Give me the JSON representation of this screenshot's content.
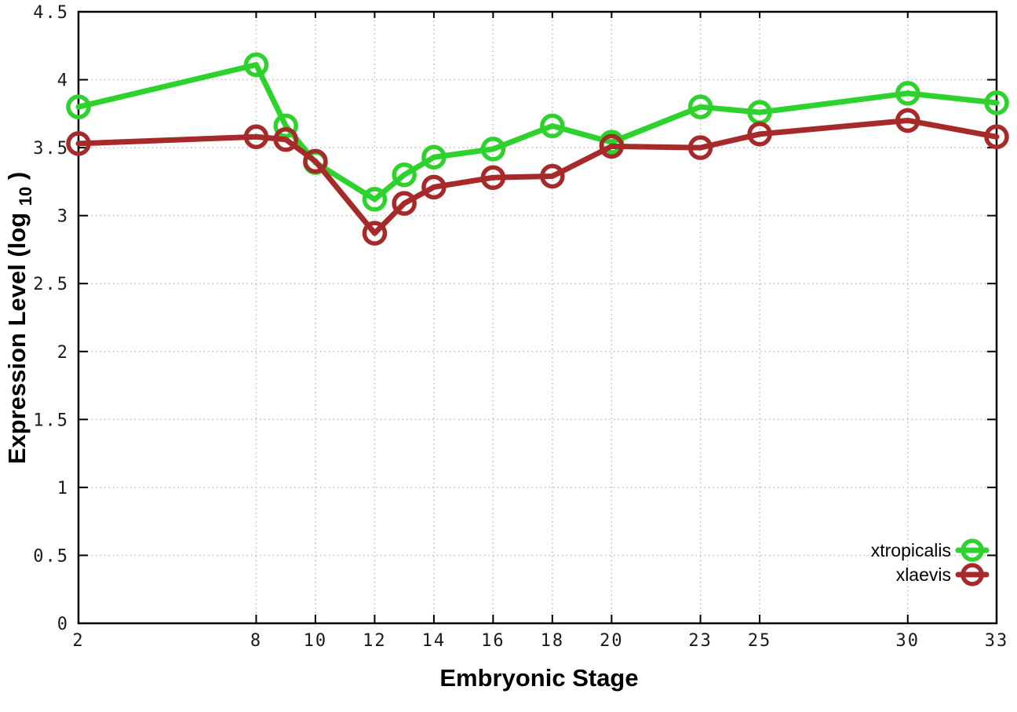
{
  "chart_data": {
    "type": "line",
    "title": "",
    "xlabel": "Embryonic Stage",
    "ylabel_parts": {
      "base": "Expression Level (log",
      "sub": "10",
      "close": ")"
    },
    "xlim": [
      2,
      33
    ],
    "ylim": [
      0,
      4.5
    ],
    "grid": true,
    "legend_position": "bottom-right",
    "xticks": [
      2,
      8,
      10,
      12,
      14,
      16,
      18,
      20,
      23,
      25,
      30,
      33
    ],
    "xtick_labels": [
      "2",
      "8",
      "10",
      "12",
      "14",
      "16",
      "18",
      "20",
      "23",
      "25",
      "30",
      "33"
    ],
    "yticks": [
      0,
      0.5,
      1,
      1.5,
      2,
      2.5,
      3,
      3.5,
      4,
      4.5
    ],
    "ytick_labels": [
      "0",
      "0.5",
      "1",
      "1.5",
      "2",
      "2.5",
      "3",
      "3.5",
      "4",
      "4.5"
    ],
    "x": [
      2,
      8,
      9,
      10,
      12,
      13,
      14,
      16,
      18,
      20,
      23,
      25,
      30,
      33
    ],
    "series": [
      {
        "name": "xtropicalis",
        "color": "#2dd22d",
        "values": [
          3.8,
          4.11,
          3.66,
          3.39,
          3.12,
          3.3,
          3.43,
          3.49,
          3.66,
          3.54,
          3.8,
          3.76,
          3.9,
          3.83
        ]
      },
      {
        "name": "xlaevis",
        "color": "#a62a2a",
        "values": [
          3.53,
          3.58,
          3.56,
          3.4,
          2.87,
          3.09,
          3.21,
          3.28,
          3.29,
          3.51,
          3.5,
          3.6,
          3.7,
          3.58
        ]
      }
    ],
    "style": {
      "grid_color": "#bbbbbb",
      "axis_color": "#000000",
      "line_width": 7,
      "marker_radius": 13,
      "marker_stroke": 5.5
    }
  }
}
